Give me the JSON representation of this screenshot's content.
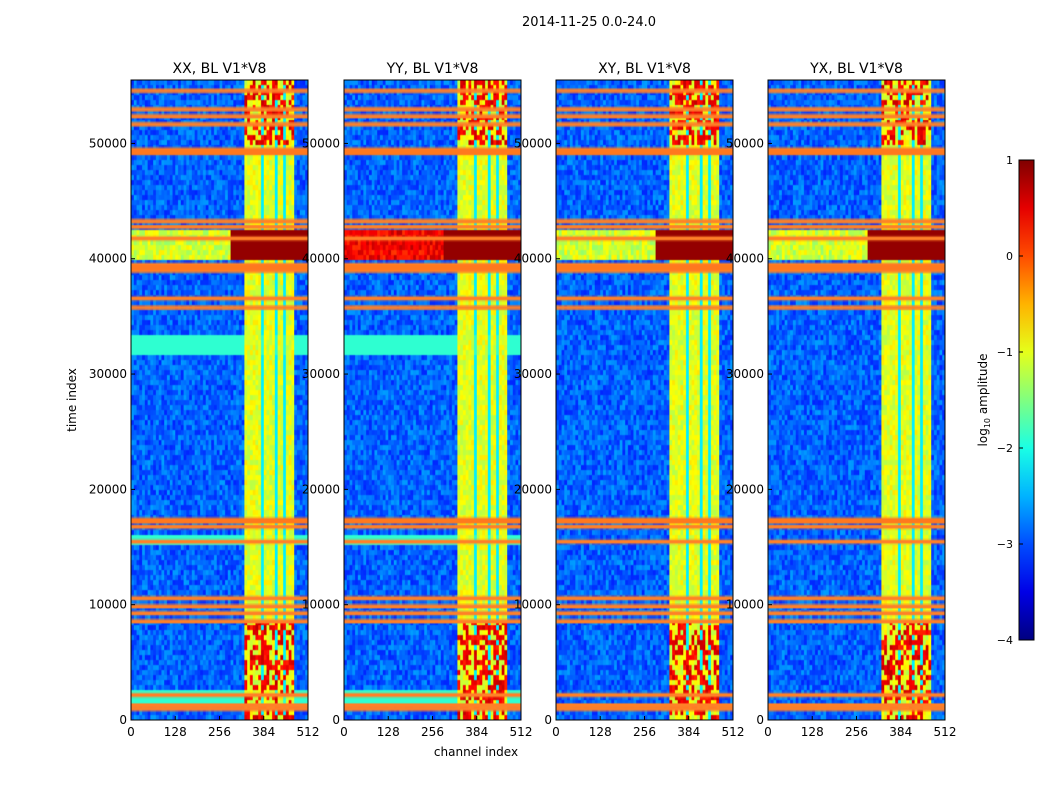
{
  "chart_data": {
    "type": "heatmap",
    "suptitle": "2014-11-25 0.0-24.0",
    "xlabel": "channel index",
    "ylabel": "time index",
    "xlim": [
      0,
      512
    ],
    "ylim": [
      0,
      55500
    ],
    "xticks": [
      0,
      128,
      256,
      384,
      512
    ],
    "yticks": [
      0,
      10000,
      20000,
      30000,
      40000,
      50000
    ],
    "panels": [
      {
        "title": "XX, BL V1*V8",
        "pol": "XX"
      },
      {
        "title": "YY, BL V1*V8",
        "pol": "YY"
      },
      {
        "title": "XY, BL V1*V8",
        "pol": "XY"
      },
      {
        "title": "YX, BL V1*V8",
        "pol": "YX"
      }
    ],
    "colorbar": {
      "label_prefix": "log",
      "label_sub": "10",
      "label_suffix": " amplitude",
      "range": [
        -4,
        1
      ],
      "ticks": [
        "1",
        "0",
        "−1",
        "−2",
        "−3",
        "−4"
      ],
      "tick_values": [
        1,
        0,
        -1,
        -2,
        -3,
        -4
      ],
      "colormap": "jet"
    },
    "features": {
      "background_level": -2.9,
      "bright_channel_band": [
        325,
        475
      ],
      "bright_channel_level": -1.0,
      "channel_gaps": [
        380,
        420,
        445
      ],
      "flagged_time_rows": [
        1000,
        1300,
        2200,
        8600,
        9300,
        9900,
        10600,
        15500,
        16800,
        17400,
        35800,
        36600,
        39000,
        39500,
        41800,
        42800,
        43300,
        49200,
        49500,
        51700,
        52400,
        53000,
        54600
      ],
      "rfi_burst_time_range": [
        40000,
        42500
      ],
      "rfi_burst_level": 0.9
    }
  }
}
